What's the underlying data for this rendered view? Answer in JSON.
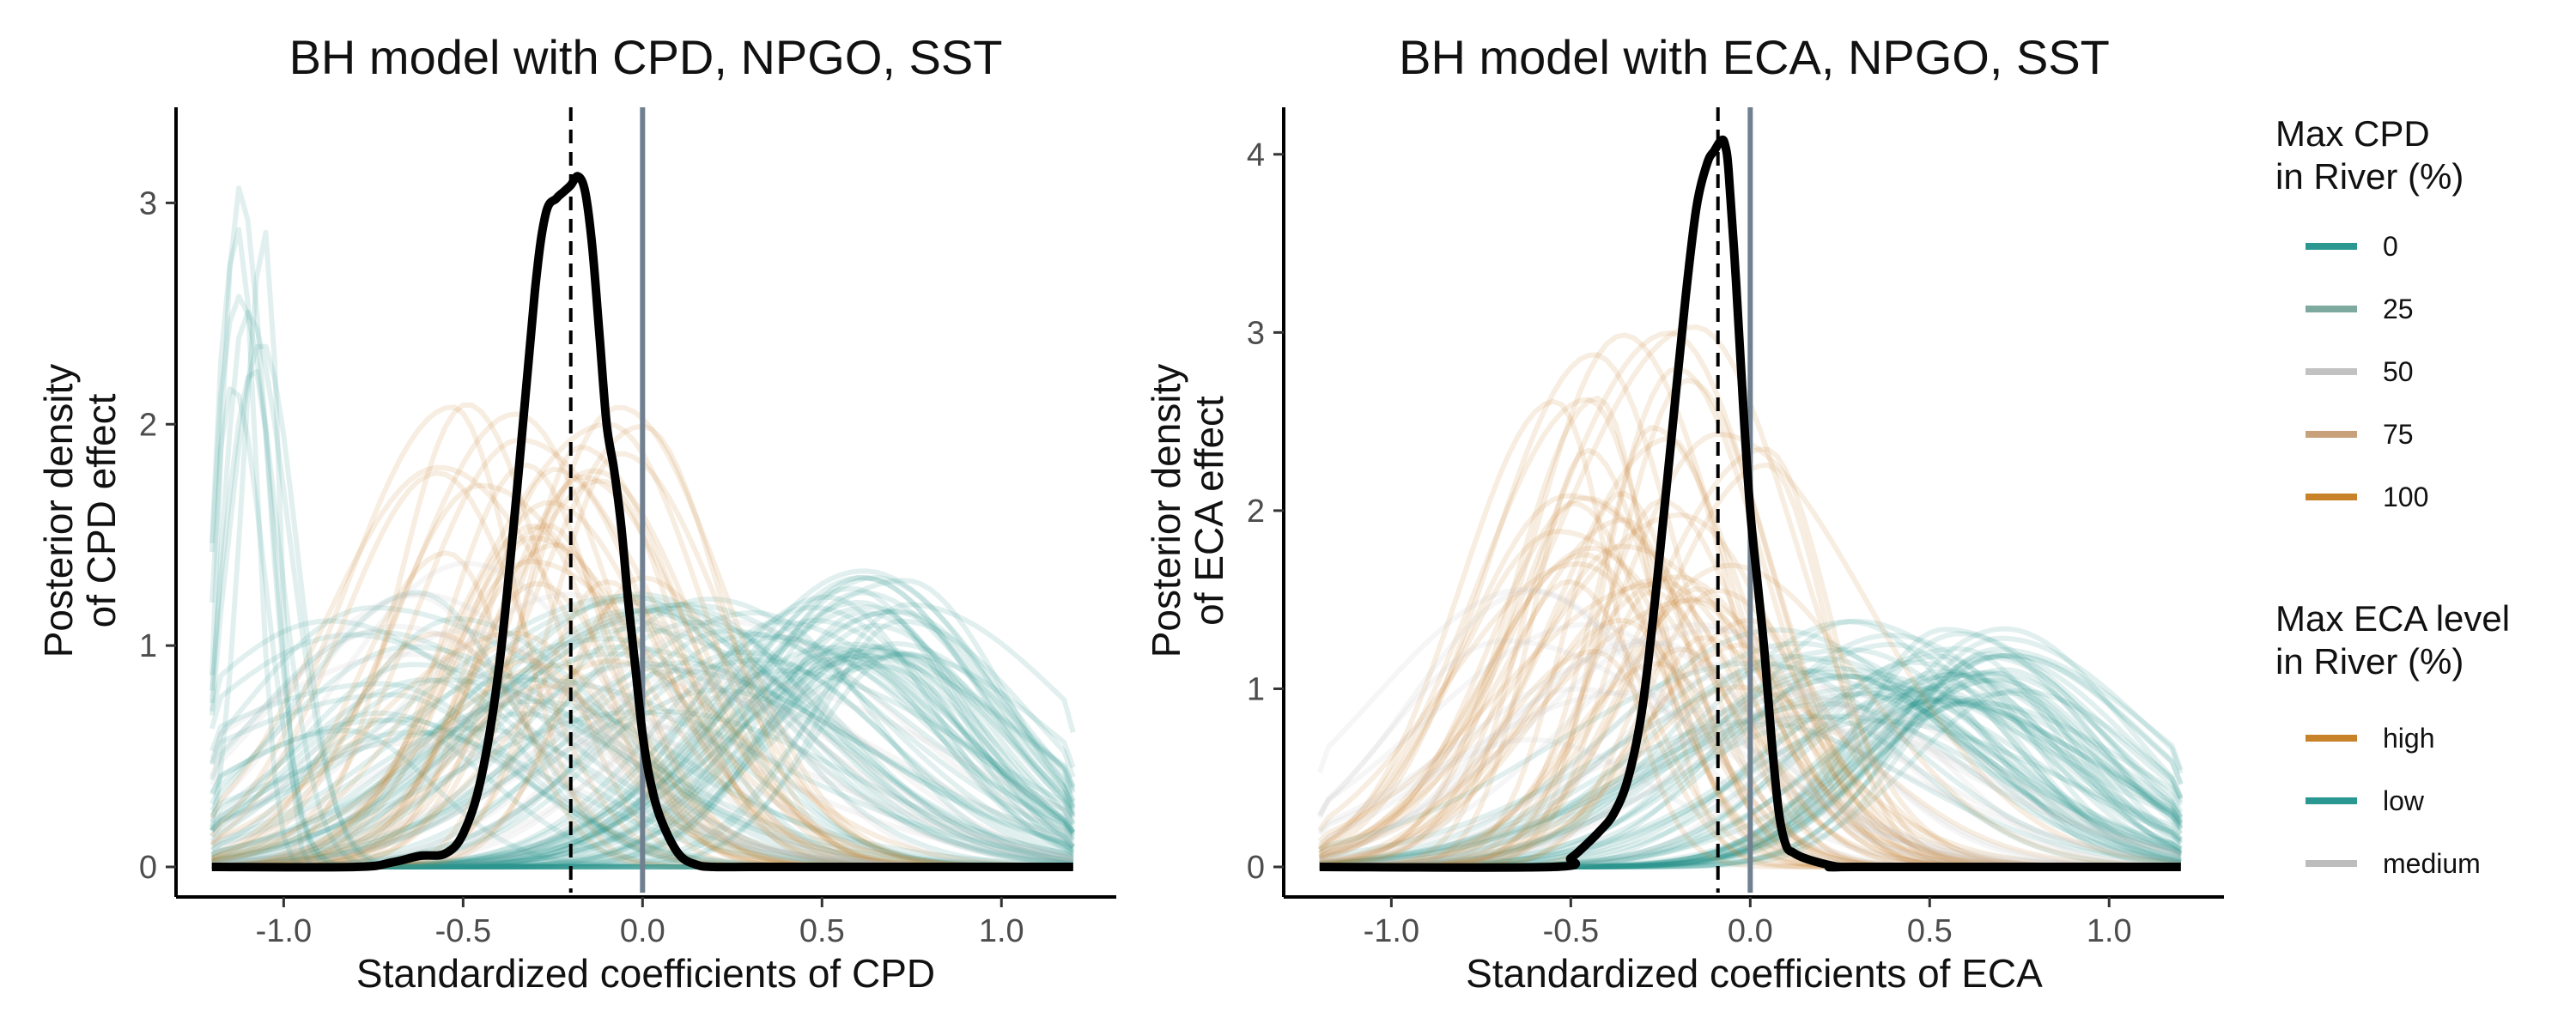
{
  "colors": {
    "high": "#C8822A",
    "low": "#2A9890",
    "medium": "#BDBDBD",
    "cpd_0": "#2A9890",
    "cpd_25": "#7DA99F",
    "cpd_50": "#C2C2C2",
    "cpd_75": "#C8A07A",
    "cpd_100": "#C8822A",
    "posterior": "#000000",
    "zero_line": "#708090",
    "median_line": "#000000"
  },
  "legend": {
    "cpd_title_1": "Max CPD",
    "cpd_title_2": "in River (%)",
    "cpd_items": [
      {
        "label": "0",
        "color_key": "cpd_0"
      },
      {
        "label": "25",
        "color_key": "cpd_25"
      },
      {
        "label": "50",
        "color_key": "cpd_50"
      },
      {
        "label": "75",
        "color_key": "cpd_75"
      },
      {
        "label": "100",
        "color_key": "cpd_100"
      }
    ],
    "eca_title_1": "Max ECA level",
    "eca_title_2": "in River (%)",
    "eca_items": [
      {
        "label": "high",
        "color_key": "high"
      },
      {
        "label": "low",
        "color_key": "low"
      },
      {
        "label": "medium",
        "color_key": "medium"
      }
    ],
    "placement": "right"
  },
  "chart_data": [
    {
      "type": "line",
      "title": "BH model with CPD, NPGO, SST",
      "xlabel": "Standardized coefficients of CPD",
      "ylabel_line1": "Posterior density",
      "ylabel_line2": "of CPD effect",
      "xlim": [
        -1.2,
        1.2
      ],
      "ylim": [
        0,
        3.3
      ],
      "x_ticks": [
        -1.0,
        -0.5,
        0.0,
        0.5,
        1.0
      ],
      "x_tick_labels": [
        "-1.0",
        "-0.5",
        "0.0",
        "0.5",
        "1.0"
      ],
      "y_ticks": [
        0,
        1,
        2,
        3
      ],
      "y_tick_labels": [
        "0",
        "1",
        "2",
        "3"
      ],
      "median_line_x": -0.2,
      "zero_line_x": 0,
      "posterior_curve": {
        "x": [
          -1.2,
          -0.8,
          -0.7,
          -0.62,
          -0.55,
          -0.5,
          -0.45,
          -0.4,
          -0.35,
          -0.3,
          -0.27,
          -0.24,
          -0.22,
          -0.2,
          -0.18,
          -0.16,
          -0.14,
          -0.12,
          -0.1,
          -0.08,
          -0.06,
          -0.04,
          -0.02,
          0.0,
          0.02,
          0.05,
          0.1,
          0.15,
          0.2,
          0.3,
          0.5,
          1.2
        ],
        "y": [
          0,
          0,
          0.02,
          0.05,
          0.06,
          0.15,
          0.4,
          0.9,
          1.7,
          2.6,
          2.95,
          3.02,
          3.05,
          3.08,
          3.12,
          3.05,
          2.8,
          2.4,
          2.0,
          1.8,
          1.55,
          1.2,
          0.9,
          0.6,
          0.4,
          0.22,
          0.06,
          0.01,
          0,
          0,
          0,
          0
        ]
      },
      "group_densities": [
        {
          "group": "low",
          "count": 35,
          "peak_x": [
            0.45,
            0.75
          ],
          "peak_y": [
            0.9,
            1.35
          ],
          "width": [
            0.28,
            0.38
          ]
        },
        {
          "group": "low",
          "count": 30,
          "peak_x": [
            -0.1,
            0.4
          ],
          "peak_y": [
            0.7,
            1.25
          ],
          "width": [
            0.35,
            0.5
          ]
        },
        {
          "group": "low",
          "count": 22,
          "peak_x": [
            -0.9,
            -0.3
          ],
          "peak_y": [
            0.6,
            1.3
          ],
          "width": [
            0.3,
            0.5
          ]
        },
        {
          "group": "high",
          "count": 35,
          "peak_x": [
            -0.6,
            0.0
          ],
          "peak_y": [
            0.8,
            2.1
          ],
          "width": [
            0.2,
            0.35
          ]
        },
        {
          "group": "medium",
          "count": 22,
          "peak_x": [
            -0.7,
            0.3
          ],
          "peak_y": [
            0.5,
            1.4
          ],
          "width": [
            0.3,
            0.5
          ]
        },
        {
          "group": "low",
          "count": 8,
          "peak_x": [
            -1.15,
            -1.05
          ],
          "peak_y": [
            1.6,
            3.3
          ],
          "width": [
            0.05,
            0.1
          ]
        }
      ]
    },
    {
      "type": "line",
      "title": "BH model with ECA, NPGO, SST",
      "xlabel": "Standardized coefficients of ECA",
      "ylabel_line1": "Posterior density",
      "ylabel_line2": "of ECA effect",
      "xlim": [
        -1.2,
        1.2
      ],
      "ylim": [
        0,
        4.1
      ],
      "x_ticks": [
        -1.0,
        -0.5,
        0.0,
        0.5,
        1.0
      ],
      "x_tick_labels": [
        "-1.0",
        "-0.5",
        "0.0",
        "0.5",
        "1.0"
      ],
      "y_ticks": [
        0,
        1,
        2,
        3,
        4
      ],
      "y_tick_labels": [
        "0",
        "1",
        "2",
        "3",
        "4"
      ],
      "median_line_x": -0.09,
      "zero_line_x": 0,
      "posterior_curve": {
        "x": [
          -1.2,
          -0.55,
          -0.5,
          -0.46,
          -0.42,
          -0.38,
          -0.34,
          -0.3,
          -0.26,
          -0.22,
          -0.18,
          -0.15,
          -0.12,
          -0.1,
          -0.08,
          -0.07,
          -0.06,
          -0.04,
          -0.02,
          0.0,
          0.02,
          0.04,
          0.06,
          0.08,
          0.1,
          0.12,
          0.15,
          0.2,
          0.25,
          0.3,
          1.2
        ],
        "y": [
          0,
          0,
          0.05,
          0.12,
          0.2,
          0.3,
          0.5,
          0.9,
          1.6,
          2.4,
          3.2,
          3.7,
          3.95,
          4.02,
          4.08,
          4.05,
          3.9,
          3.3,
          2.6,
          2.0,
          1.6,
          1.2,
          0.7,
          0.3,
          0.12,
          0.08,
          0.05,
          0.02,
          0,
          0,
          0
        ]
      },
      "group_densities": [
        {
          "group": "low",
          "count": 35,
          "peak_x": [
            0.45,
            0.75
          ],
          "peak_y": [
            0.9,
            1.35
          ],
          "width": [
            0.28,
            0.38
          ]
        },
        {
          "group": "low",
          "count": 25,
          "peak_x": [
            -0.1,
            0.4
          ],
          "peak_y": [
            0.8,
            1.4
          ],
          "width": [
            0.35,
            0.5
          ]
        },
        {
          "group": "high",
          "count": 45,
          "peak_x": [
            -0.55,
            0.05
          ],
          "peak_y": [
            1.0,
            3.05
          ],
          "width": [
            0.17,
            0.35
          ]
        },
        {
          "group": "medium",
          "count": 20,
          "peak_x": [
            -0.7,
            0.3
          ],
          "peak_y": [
            0.6,
            1.6
          ],
          "width": [
            0.3,
            0.5
          ]
        }
      ]
    }
  ]
}
